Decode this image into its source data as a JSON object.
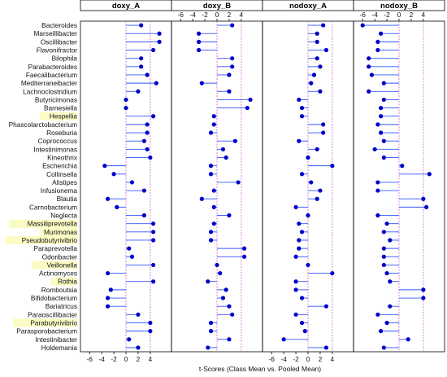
{
  "chart_data": {
    "type": "scatter",
    "style": "dot-plot with segments from zero, 4 facet panels",
    "xlabel": "t-Scores (Class Mean vs. Pooled Mean)",
    "xlim": [
      -7.5,
      7.5
    ],
    "xticks": [
      -6,
      -4,
      -2,
      0,
      2,
      4
    ],
    "xticks_top_shown_on": [
      "doxy_B",
      "nodoxy_B"
    ],
    "xticks_bottom_shown_on": [
      "doxy_A",
      "nodoxy_A"
    ],
    "reference_lines": [
      0,
      4
    ],
    "colors": {
      "point": "#0000cc",
      "segment": "#3355ff",
      "reference": "#cc66cc",
      "highlight": "#fbfbc4"
    },
    "panels": [
      "doxy_A",
      "doxy_B",
      "nodoxy_A",
      "nodoxy_B"
    ],
    "categories": [
      "Bacteroides",
      "Marseillibacter",
      "Oscillibacter",
      "Flavonifractor",
      "Bilophila",
      "Parabacteroides",
      "Faecalibacterium",
      "Mediterraneibacter",
      "Lachnoclostridium",
      "Butyricimonas",
      "Barnesiella",
      "Hespellia",
      "Phascolarctobacterium",
      "Roseburia",
      "Coprococcus",
      "Intestinimonas",
      "Kineothrix",
      "Escherichia",
      "Collinsella",
      "Alistipes",
      "Infusionema",
      "Blautia",
      "Carnobacterium",
      "Neglecta",
      "Massiliprevotella",
      "Murimonas",
      "Pseudobutyrivibrio",
      "Paraprevotella",
      "Odoribacter",
      "Veillonella",
      "Actinomyces",
      "Rothia",
      "Romboutsia",
      "Bifidobacterium",
      "Bariatricus",
      "Paraoscillibacter",
      "Parabutyrivibrio",
      "Parasporobacterium",
      "Intestinibacter",
      "Holdemania"
    ],
    "highlighted": [
      "Hespellia",
      "Massiliprevotella",
      "Murimonas",
      "Pseudobutyrivibrio",
      "Veillonella",
      "Rothia",
      "Parabutyrivibrio"
    ],
    "series": [
      {
        "name": "doxy_A",
        "values": [
          2.5,
          5.5,
          5.5,
          4.5,
          2.5,
          2.5,
          3.5,
          5.0,
          2.0,
          0.0,
          0.0,
          4.5,
          3.5,
          3.5,
          3.0,
          3.5,
          4.0,
          -3.5,
          -2.0,
          1.0,
          3.0,
          -3.0,
          -1.5,
          3.0,
          4.5,
          4.5,
          4.5,
          0.5,
          1.0,
          4.5,
          -3.0,
          4.5,
          -2.5,
          -3.0,
          -3.0,
          2.0,
          4.0,
          4.0,
          0.5,
          2.0
        ]
      },
      {
        "name": "doxy_B",
        "values": [
          2.5,
          -3.0,
          -3.0,
          -3.0,
          2.5,
          2.5,
          2.0,
          -2.5,
          2.0,
          5.5,
          5.0,
          -0.5,
          -0.5,
          -1.0,
          3.0,
          1.0,
          1.5,
          -1.0,
          -1.0,
          3.5,
          -0.5,
          -2.5,
          -0.5,
          2.0,
          -0.5,
          -1.0,
          -1.0,
          4.5,
          4.5,
          0.0,
          0.5,
          -1.5,
          1.5,
          1.0,
          2.0,
          2.5,
          -1.0,
          -1.0,
          2.0,
          -1.5
        ]
      },
      {
        "name": "nodoxy_A",
        "values": [
          2.5,
          1.5,
          1.5,
          3.0,
          1.5,
          2.0,
          1.0,
          0.5,
          2.0,
          -1.5,
          -1.0,
          -1.0,
          2.5,
          2.5,
          -1.5,
          1.5,
          0.0,
          4.0,
          -1.0,
          0.5,
          2.0,
          1.5,
          -2.0,
          0.0,
          -1.5,
          -1.0,
          -1.5,
          -1.5,
          -2.0,
          0.0,
          4.0,
          -2.0,
          -2.0,
          -1.0,
          3.0,
          -2.0,
          -1.0,
          -0.5,
          -4.0,
          3.0
        ]
      },
      {
        "name": "nodoxy_B",
        "values": [
          -6.0,
          -3.0,
          -3.5,
          -3.5,
          -5.0,
          -5.0,
          -4.5,
          -2.5,
          -5.0,
          -2.5,
          -3.0,
          -3.0,
          -3.5,
          -3.0,
          -2.5,
          -4.0,
          -2.5,
          0.5,
          5.0,
          -3.5,
          -3.5,
          4.0,
          4.5,
          -3.5,
          -2.0,
          -2.5,
          -1.5,
          -2.5,
          -2.5,
          -2.5,
          -2.0,
          -1.5,
          4.0,
          4.0,
          -1.5,
          -3.5,
          -2.0,
          -3.0,
          1.5,
          -2.5
        ]
      }
    ]
  }
}
